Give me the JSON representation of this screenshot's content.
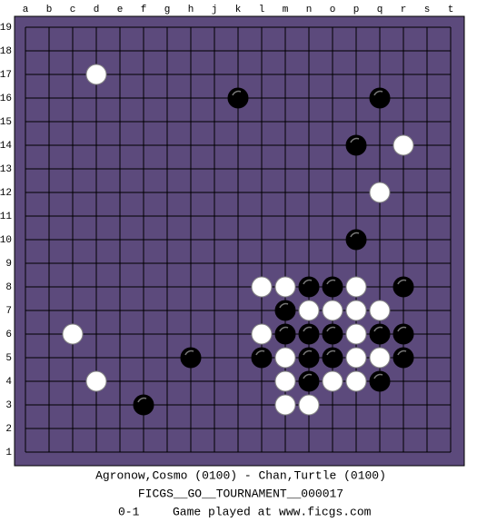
{
  "board": {
    "columns": [
      "a",
      "b",
      "c",
      "d",
      "e",
      "f",
      "g",
      "h",
      "j",
      "k",
      "l",
      "m",
      "n",
      "o",
      "p",
      "q",
      "r",
      "s",
      "t"
    ],
    "rows": [
      19,
      18,
      17,
      16,
      15,
      14,
      13,
      12,
      11,
      10,
      9,
      8,
      7,
      6,
      5,
      4,
      3,
      2,
      1
    ],
    "stones": [
      {
        "color": "white",
        "col": "d",
        "row": 17
      },
      {
        "color": "black",
        "col": "k",
        "row": 16
      },
      {
        "color": "black",
        "col": "q",
        "row": 16
      },
      {
        "color": "black",
        "col": "p",
        "row": 14
      },
      {
        "color": "white",
        "col": "r",
        "row": 14
      },
      {
        "color": "white",
        "col": "q",
        "row": 12
      },
      {
        "color": "black",
        "col": "p",
        "row": 10
      },
      {
        "color": "white",
        "col": "l",
        "row": 8
      },
      {
        "color": "white",
        "col": "m",
        "row": 8
      },
      {
        "color": "black",
        "col": "n",
        "row": 8
      },
      {
        "color": "black",
        "col": "o",
        "row": 8
      },
      {
        "color": "white",
        "col": "p",
        "row": 8
      },
      {
        "color": "black",
        "col": "r",
        "row": 8
      },
      {
        "color": "black",
        "col": "m",
        "row": 7
      },
      {
        "color": "white",
        "col": "n",
        "row": 7
      },
      {
        "color": "white",
        "col": "o",
        "row": 7
      },
      {
        "color": "white",
        "col": "p",
        "row": 7
      },
      {
        "color": "white",
        "col": "q",
        "row": 7
      },
      {
        "color": "white",
        "col": "c",
        "row": 6
      },
      {
        "color": "white",
        "col": "l",
        "row": 6
      },
      {
        "color": "black",
        "col": "m",
        "row": 6
      },
      {
        "color": "black",
        "col": "n",
        "row": 6
      },
      {
        "color": "black",
        "col": "o",
        "row": 6
      },
      {
        "color": "white",
        "col": "p",
        "row": 6
      },
      {
        "color": "black",
        "col": "q",
        "row": 6
      },
      {
        "color": "black",
        "col": "r",
        "row": 6
      },
      {
        "color": "black",
        "col": "h",
        "row": 5
      },
      {
        "color": "black",
        "col": "l",
        "row": 5
      },
      {
        "color": "white",
        "col": "m",
        "row": 5
      },
      {
        "color": "black",
        "col": "n",
        "row": 5
      },
      {
        "color": "black",
        "col": "o",
        "row": 5
      },
      {
        "color": "white",
        "col": "p",
        "row": 5
      },
      {
        "color": "white",
        "col": "q",
        "row": 5
      },
      {
        "color": "black",
        "col": "r",
        "row": 5
      },
      {
        "color": "white",
        "col": "d",
        "row": 4
      },
      {
        "color": "white",
        "col": "m",
        "row": 4
      },
      {
        "color": "black",
        "col": "n",
        "row": 4
      },
      {
        "color": "white",
        "col": "o",
        "row": 4
      },
      {
        "color": "white",
        "col": "p",
        "row": 4
      },
      {
        "color": "black",
        "col": "q",
        "row": 4
      },
      {
        "color": "black",
        "col": "f",
        "row": 3
      },
      {
        "color": "white",
        "col": "m",
        "row": 3
      },
      {
        "color": "white",
        "col": "n",
        "row": 3
      }
    ]
  },
  "caption": {
    "players": "Agronow,Cosmo (0100) - Chan,Turtle (0100)",
    "event": "FICGS__GO__TOURNAMENT__000017",
    "result": "0-1",
    "site": "Game played at www.ficgs.com"
  }
}
